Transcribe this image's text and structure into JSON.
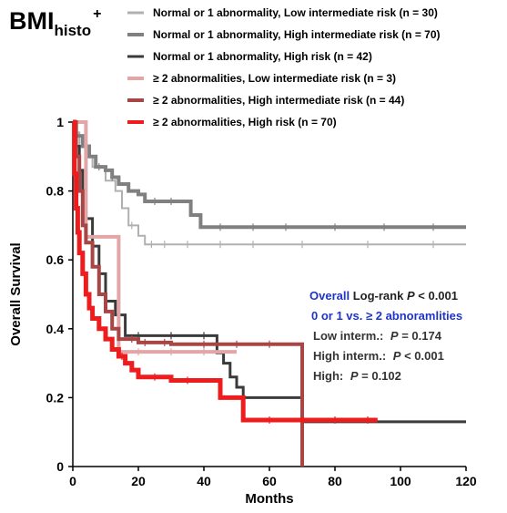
{
  "heading": {
    "main": "BMI",
    "sub": "histo",
    "sup": "+"
  },
  "colors": {
    "normal_low": "#b0b0b0",
    "normal_high": "#808080",
    "normal_highrisk": "#3a3a3a",
    "abn_low": "#e2a6a6",
    "abn_high": "#a84545",
    "abn_highrisk": "#ee1c1c"
  },
  "stats": {
    "overall_label": "Overall",
    "overall_text": "Log-rank",
    "overall_p": "P",
    "overall_value": "< 0.001",
    "comparison": "0 or 1 vs. ≥ 2 abnoramlities",
    "rows": [
      {
        "label": "Low interm.:",
        "p": "P",
        "value": "= 0.174"
      },
      {
        "label": "High interm.:",
        "p": "P",
        "value": "< 0.001"
      },
      {
        "label": "High:",
        "p": "P",
        "value": "= 0.102"
      }
    ]
  },
  "chart_data": {
    "type": "line",
    "subtype": "kaplan-meier step",
    "xlabel": "Months",
    "ylabel": "Overall Survival",
    "xlim": [
      0,
      120
    ],
    "ylim": [
      0,
      1
    ],
    "x_ticks": [
      "0",
      "20",
      "40",
      "60",
      "80",
      "100",
      "120"
    ],
    "y_ticks": [
      "0",
      "0.2",
      "0.4",
      "0.6",
      "0.8",
      "1"
    ],
    "legend_position": "top-right",
    "series": [
      {
        "name": "Normal or 1 abnormality, Low intermediate risk (n = 30)",
        "color_key": "normal_low",
        "width": 2,
        "x": [
          0,
          1,
          2,
          4,
          6,
          10,
          13,
          15,
          17,
          20,
          22,
          120
        ],
        "y": [
          1,
          0.97,
          0.93,
          0.9,
          0.87,
          0.83,
          0.8,
          0.75,
          0.7,
          0.67,
          0.645,
          0.645
        ],
        "censor_x": [
          18,
          24,
          28,
          35,
          45,
          55,
          70,
          90,
          110
        ]
      },
      {
        "name": "Normal or 1 abnormality, High intermediate risk (n = 70)",
        "color_key": "normal_high",
        "width": 4,
        "x": [
          0,
          1,
          3,
          5,
          7,
          10,
          12,
          14,
          17,
          20,
          22,
          36,
          39,
          120
        ],
        "y": [
          1,
          0.96,
          0.93,
          0.9,
          0.87,
          0.86,
          0.84,
          0.82,
          0.8,
          0.79,
          0.77,
          0.73,
          0.695,
          0.695
        ],
        "censor_x": [
          8,
          12,
          25,
          30,
          45,
          55,
          65,
          80,
          95,
          110
        ]
      },
      {
        "name": "Normal or 1 abnormality, High risk (n = 42)",
        "color_key": "normal_highrisk",
        "width": 3,
        "x": [
          0,
          1,
          2,
          3,
          4,
          6,
          8,
          10,
          13,
          16,
          44,
          46,
          48,
          50,
          52,
          70,
          120
        ],
        "y": [
          1,
          0.93,
          0.86,
          0.79,
          0.72,
          0.64,
          0.56,
          0.48,
          0.44,
          0.38,
          0.33,
          0.3,
          0.26,
          0.23,
          0.2,
          0.13,
          0.13
        ],
        "censor_x": [
          20,
          30,
          40
        ]
      },
      {
        "name": "≥ 2 abnormalities, Low intermediate risk (n = 3)",
        "color_key": "abn_low",
        "width": 4,
        "x": [
          0,
          4,
          14,
          50
        ],
        "y": [
          1,
          0.667,
          0.333,
          0.333
        ],
        "censor_x": [
          20,
          30,
          40
        ]
      },
      {
        "name": "≥ 2 abnormalities, High intermediate risk (n = 44)",
        "color_key": "abn_high",
        "width": 4,
        "x": [
          0,
          1,
          2,
          3,
          4,
          6,
          8,
          10,
          12,
          14,
          20,
          30,
          70,
          70
        ],
        "y": [
          1,
          0.9,
          0.8,
          0.7,
          0.65,
          0.58,
          0.5,
          0.45,
          0.4,
          0.37,
          0.36,
          0.355,
          0.355,
          0
        ],
        "censor_x": [
          18,
          22,
          28,
          40,
          50,
          60
        ]
      },
      {
        "name": "≥ 2 abnormalities, High risk (n = 70)",
        "color_key": "abn_highrisk",
        "width": 5,
        "x": [
          0,
          0.5,
          1,
          1.5,
          2,
          3,
          4,
          5,
          6,
          8,
          10,
          12,
          14,
          16,
          18,
          20,
          30,
          38,
          45,
          52,
          93
        ],
        "y": [
          1,
          0.85,
          0.75,
          0.68,
          0.62,
          0.56,
          0.5,
          0.46,
          0.43,
          0.4,
          0.37,
          0.34,
          0.32,
          0.3,
          0.28,
          0.26,
          0.25,
          0.25,
          0.2,
          0.135,
          0.135
        ],
        "censor_x": [
          15,
          25,
          35,
          60,
          70,
          80,
          90
        ]
      }
    ]
  }
}
